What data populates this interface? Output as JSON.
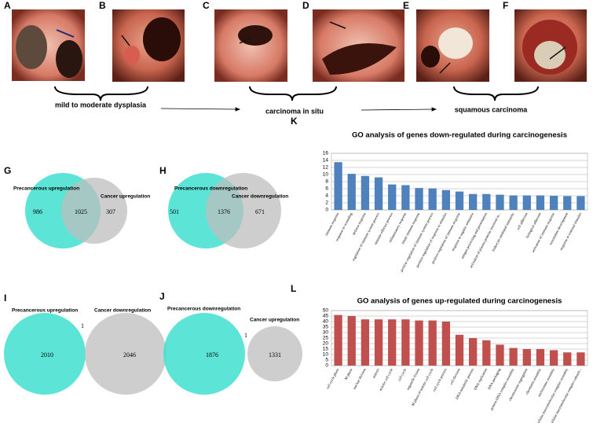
{
  "panels": {
    "labels": [
      "A",
      "B",
      "C",
      "D",
      "E",
      "F"
    ],
    "stages": [
      "mild to moderate dysplasia",
      "carcinoma in situ",
      "squamous carcinoma"
    ]
  },
  "venns": [
    {
      "label": "G",
      "left": {
        "name": "Precancerous upregulation",
        "count": 986
      },
      "right": {
        "name": "Cancer upregulation",
        "count": 307
      },
      "overlap": 1025
    },
    {
      "label": "H",
      "left": {
        "name": "Precancerous downregulation",
        "count": 501
      },
      "right": {
        "name": "Cancer downregulation",
        "count": 671
      },
      "overlap": 1376
    },
    {
      "label": "I",
      "left": {
        "name": "Precancerous upregulation",
        "count": 2010
      },
      "right": {
        "name": "Cancer downregulation",
        "count": 2046
      },
      "overlap": 1
    },
    {
      "label": "J",
      "left": {
        "name": "Precancerous downregulation",
        "count": 1876
      },
      "right": {
        "name": "Cancer upregulation",
        "count": 1331
      },
      "overlap": 1
    }
  ],
  "chart_data": [
    {
      "type": "bar",
      "panel": "K",
      "title": "GO analysis of genes down-regulated during carcinogenesis",
      "categories": [
        "immune response",
        "response to wounding",
        "defense response",
        "regulation of immune system process",
        "immune effector process",
        "inflammatory response",
        "innate immune response",
        "positive regulation of immune system process",
        "positive regulation of response to stimulus",
        "positive regulation of immune response",
        "response to organic substance",
        "antigen processing and presentation",
        "activation of plasma proteins involved in...",
        "leukocyte mediated immunity",
        "cell adhesion",
        "biological adhesion",
        "activation of immune response",
        "vasculature development",
        "response to external stimulus"
      ],
      "values": [
        13.5,
        10.2,
        9.6,
        9.2,
        7.2,
        7.0,
        6.2,
        6.1,
        5.6,
        5.2,
        4.5,
        4.5,
        4.3,
        4.1,
        4.1,
        4.1,
        4.0,
        3.9,
        3.9
      ],
      "color": "#4f81bd",
      "ylim": [
        0,
        16
      ],
      "yticks": [
        0,
        2,
        4,
        6,
        8,
        10,
        12,
        14,
        16
      ],
      "grid": true
    },
    {
      "type": "bar",
      "panel": "L",
      "title": "GO analysis of genes up-regulated during carcinogenesis",
      "categories": [
        "cell cycle phase",
        "M phase",
        "nuclear division",
        "mitosis",
        "mitotic cell cycle",
        "cell cycle",
        "organelle fission",
        "M phase of mitotic cell cycle",
        "cell cycle process",
        "cell division",
        "DNA metabolic process",
        "DNA replication",
        "DNA packaging",
        "protein-DNA complex assembly",
        "chromosome segregation",
        "chromatin assembly",
        "nucleosome assembly",
        "cellular macromolecular complex assembly",
        "cellular macromolecular complex subunit..."
      ],
      "values": [
        46,
        45,
        42,
        42,
        42,
        42,
        41,
        41,
        40,
        28,
        25,
        23,
        19,
        16,
        15,
        15,
        14,
        12,
        12
      ],
      "color": "#c0504d",
      "ylim": [
        0,
        50
      ],
      "yticks": [
        0,
        5,
        10,
        15,
        20,
        25,
        30,
        35,
        40,
        45,
        50
      ],
      "grid": true
    }
  ]
}
